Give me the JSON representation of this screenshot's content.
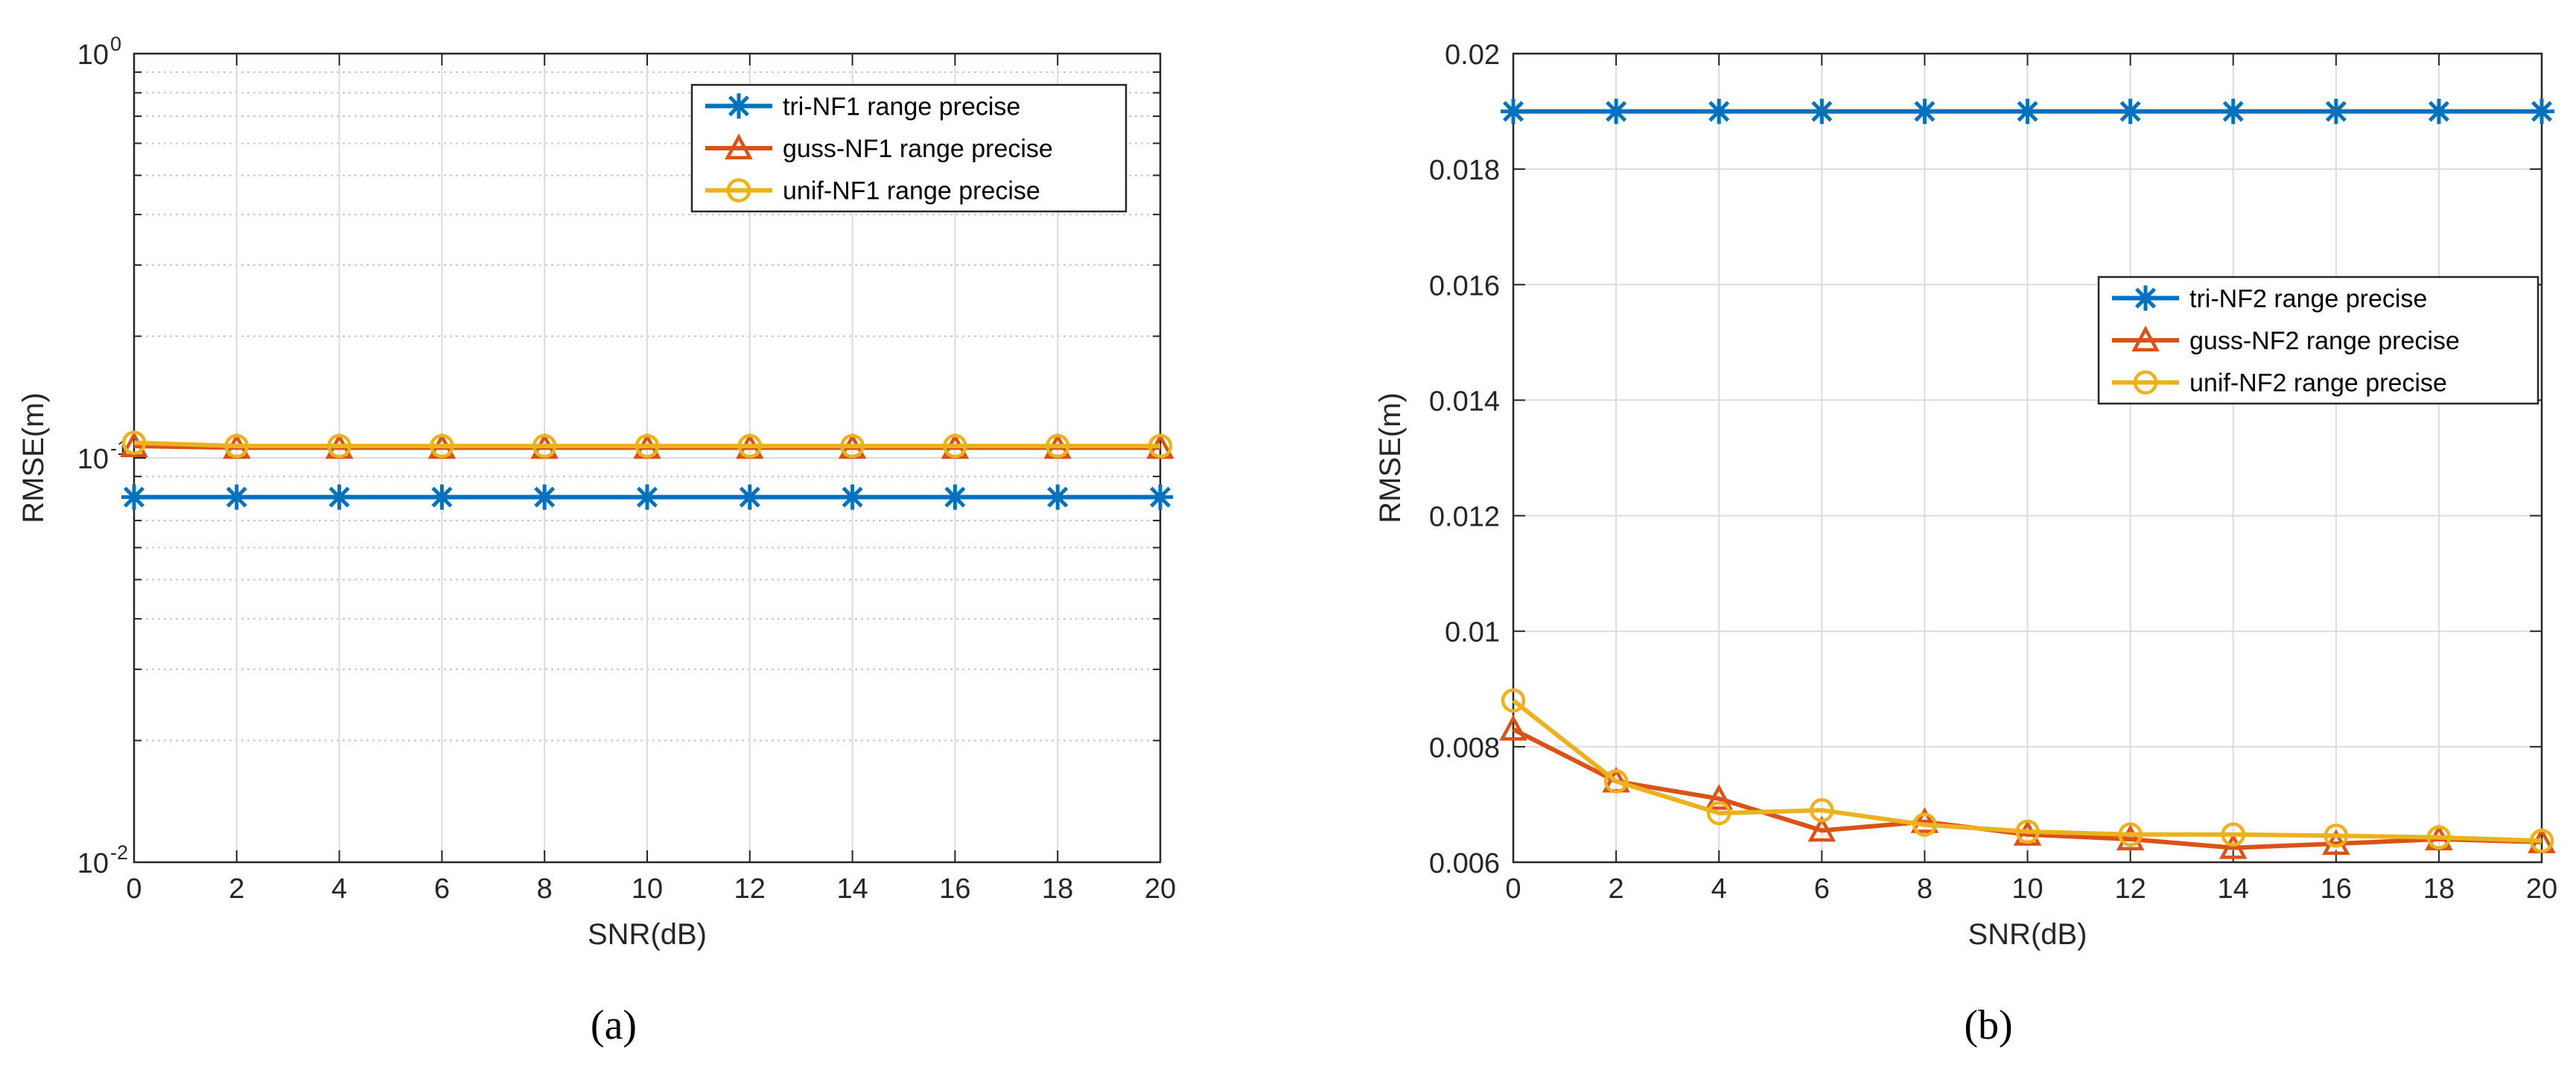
{
  "figure": {
    "captions": [
      "(a)",
      "(b)"
    ]
  },
  "colors": {
    "tri": "#0072BD",
    "guss": "#D95319",
    "unif": "#EDB120",
    "grid": "#dcdcdc",
    "axis": "#262626"
  },
  "chart_data": [
    {
      "type": "line",
      "panel": "a",
      "caption": "(a)",
      "xlabel": "SNR(dB)",
      "ylabel": "RMSE(m)",
      "yscale": "log",
      "xlim": [
        0,
        20
      ],
      "ylim": [
        0.01,
        1
      ],
      "xticks": [
        0,
        2,
        4,
        6,
        8,
        10,
        12,
        14,
        16,
        18,
        20
      ],
      "yticks": [
        {
          "value": 0.01,
          "base": "10",
          "exp": "-2"
        },
        {
          "value": 0.1,
          "base": "10",
          "exp": "-1"
        },
        {
          "value": 1,
          "base": "10",
          "exp": "0"
        }
      ],
      "grid": true,
      "minor_grid": true,
      "legend_position": "top-right",
      "x": [
        0,
        2,
        4,
        6,
        8,
        10,
        12,
        14,
        16,
        18,
        20
      ],
      "series": [
        {
          "name": "tri-NF1 range precise",
          "marker": "asterisk",
          "color": "#0072BD",
          "values": [
            0.08,
            0.08,
            0.08,
            0.08,
            0.08,
            0.08,
            0.08,
            0.08,
            0.08,
            0.08,
            0.08
          ]
        },
        {
          "name": "guss-NF1 range precise",
          "marker": "triangle",
          "color": "#D95319",
          "values": [
            0.107,
            0.106,
            0.106,
            0.106,
            0.106,
            0.106,
            0.106,
            0.106,
            0.106,
            0.106,
            0.106
          ]
        },
        {
          "name": "unif-NF1 range precise",
          "marker": "circle",
          "color": "#EDB120",
          "values": [
            0.109,
            0.107,
            0.107,
            0.107,
            0.107,
            0.107,
            0.107,
            0.107,
            0.107,
            0.107,
            0.107
          ]
        }
      ]
    },
    {
      "type": "line",
      "panel": "b",
      "caption": "(b)",
      "xlabel": "SNR(dB)",
      "ylabel": "RMSE(m)",
      "yscale": "linear",
      "xlim": [
        0,
        20
      ],
      "ylim": [
        0.006,
        0.02
      ],
      "xticks": [
        0,
        2,
        4,
        6,
        8,
        10,
        12,
        14,
        16,
        18,
        20
      ],
      "yticks": [
        {
          "value": 0.006,
          "label": "0.006"
        },
        {
          "value": 0.008,
          "label": "0.008"
        },
        {
          "value": 0.01,
          "label": "0.01"
        },
        {
          "value": 0.012,
          "label": "0.012"
        },
        {
          "value": 0.014,
          "label": "0.014"
        },
        {
          "value": 0.016,
          "label": "0.016"
        },
        {
          "value": 0.018,
          "label": "0.018"
        },
        {
          "value": 0.02,
          "label": "0.02"
        }
      ],
      "grid": true,
      "minor_grid": false,
      "legend_position": "right",
      "x": [
        0,
        2,
        4,
        6,
        8,
        10,
        12,
        14,
        16,
        18,
        20
      ],
      "series": [
        {
          "name": "tri-NF2 range precise",
          "marker": "asterisk",
          "color": "#0072BD",
          "values": [
            0.019,
            0.019,
            0.019,
            0.019,
            0.019,
            0.019,
            0.019,
            0.019,
            0.019,
            0.019,
            0.019
          ]
        },
        {
          "name": "guss-NF2 range precise",
          "marker": "triangle",
          "color": "#D95319",
          "values": [
            0.0083,
            0.0074,
            0.0071,
            0.00655,
            0.0067,
            0.00648,
            0.0064,
            0.00625,
            0.00632,
            0.0064,
            0.00635
          ]
        },
        {
          "name": "unif-NF2 range precise",
          "marker": "circle",
          "color": "#EDB120",
          "values": [
            0.0088,
            0.0074,
            0.00685,
            0.0069,
            0.00665,
            0.00653,
            0.00648,
            0.00648,
            0.00646,
            0.00643,
            0.00637
          ]
        }
      ]
    }
  ]
}
